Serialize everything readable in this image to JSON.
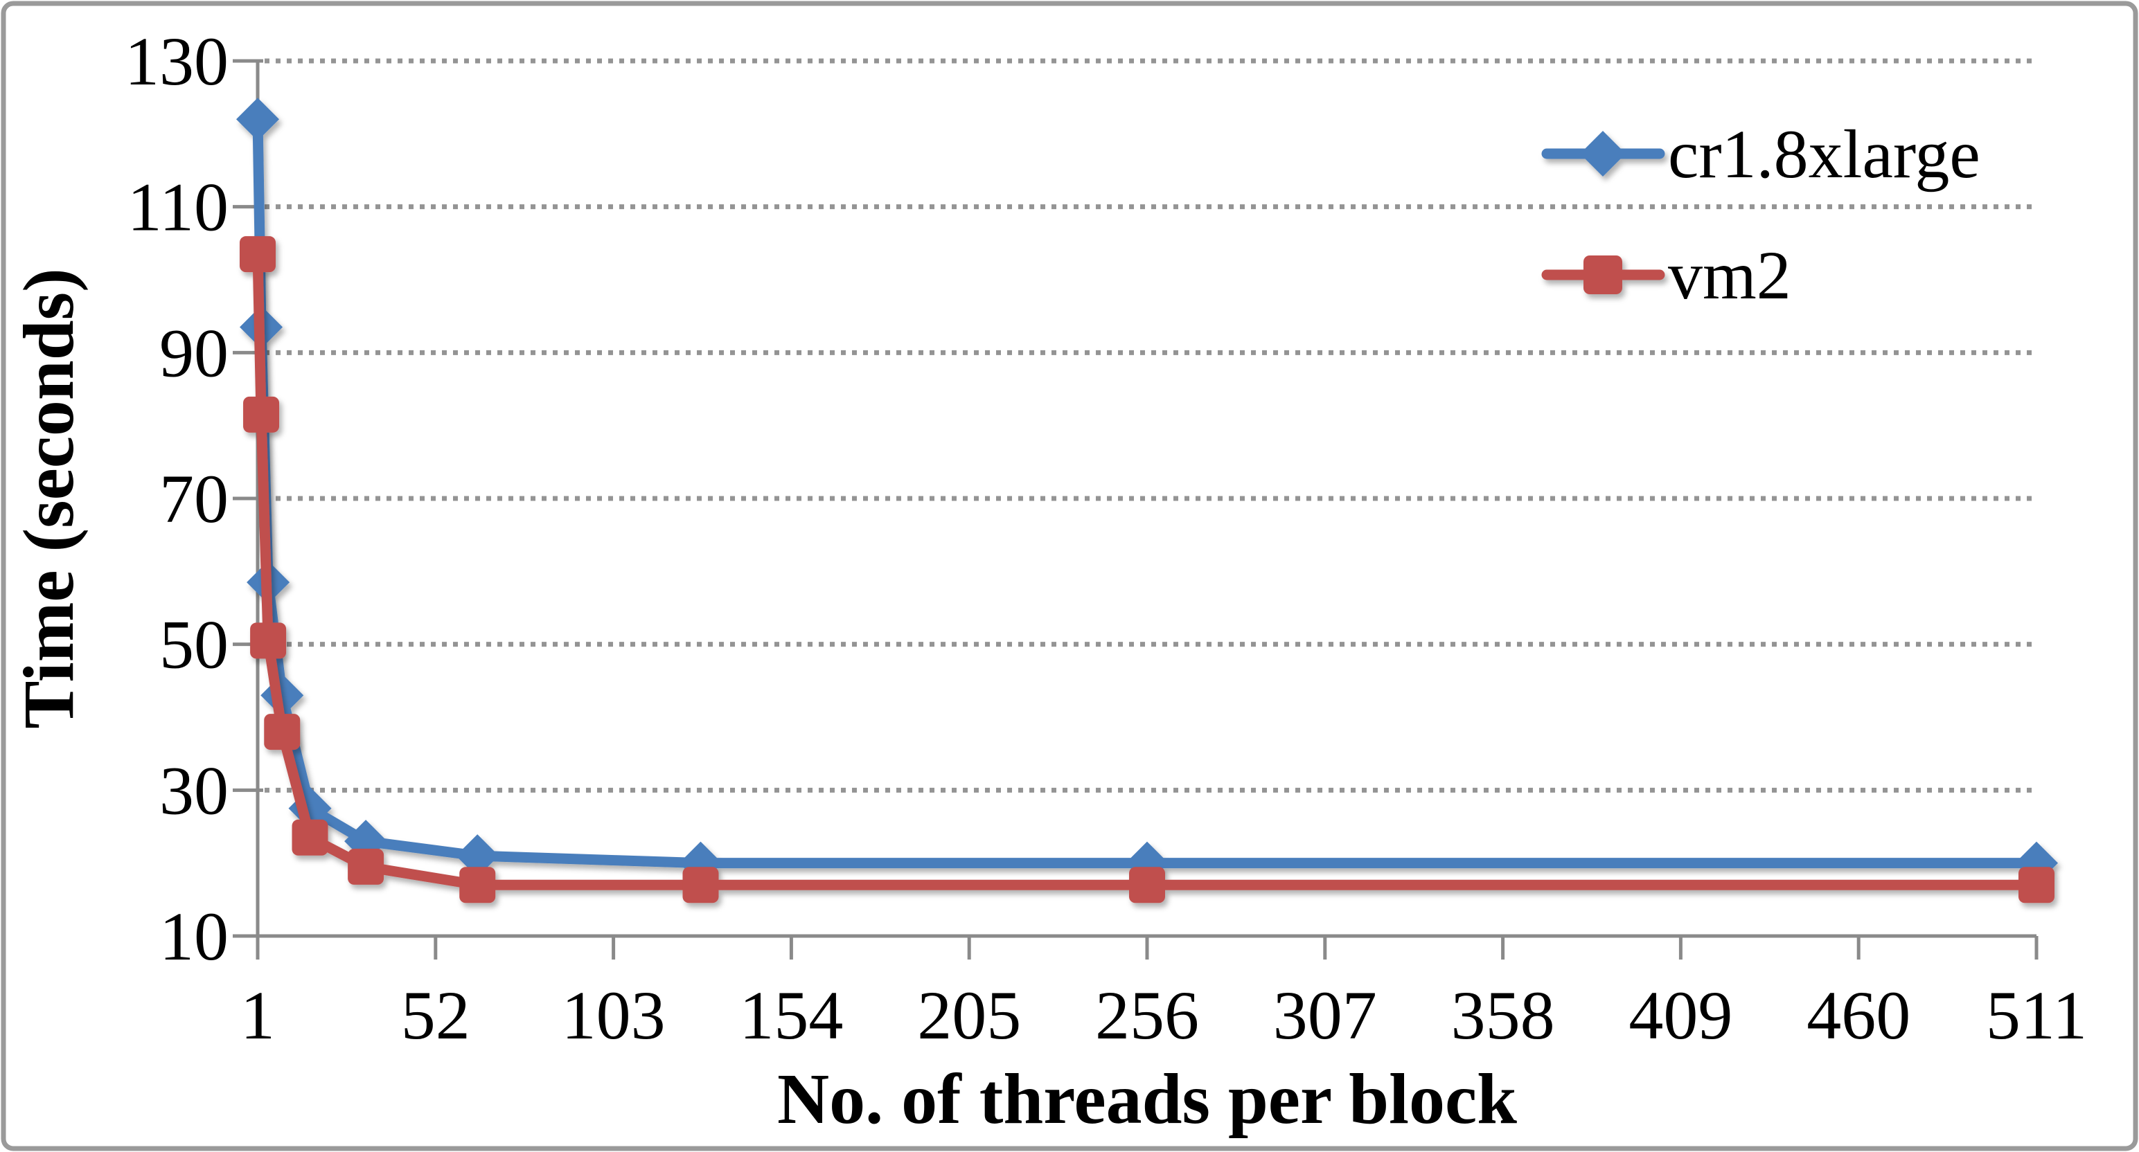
{
  "chart_data": {
    "type": "line",
    "title": "",
    "xlabel": "No. of threads per block",
    "ylabel": "Time (seconds)",
    "x": [
      1,
      2,
      4,
      8,
      16,
      32,
      64,
      128,
      256,
      511
    ],
    "series": [
      {
        "name": "cr1.8xlarge",
        "color": "#4A7EBC",
        "marker": "diamond",
        "values": [
          122,
          93.5,
          58.5,
          43,
          27.5,
          23,
          21,
          20,
          20,
          20
        ]
      },
      {
        "name": "vm2",
        "color": "#C0504D",
        "marker": "square",
        "values": [
          103.5,
          81.5,
          50.5,
          38,
          23.5,
          19.5,
          17,
          17,
          17,
          17
        ]
      }
    ],
    "x_ticks": [
      "1",
      "52",
      "103",
      "154",
      "205",
      "256",
      "307",
      "358",
      "409",
      "460",
      "511"
    ],
    "y_ticks": [
      "10",
      "30",
      "50",
      "70",
      "90",
      "110",
      "130"
    ],
    "xlim": [
      1,
      511
    ],
    "ylim": [
      10,
      130
    ],
    "grid": "horizontal-dotted",
    "legend_position": "upper-right-inside"
  },
  "styles": {
    "axis_color": "#8A8A8A",
    "grid_color": "#949494",
    "border_color": "#9A9A9A",
    "text_color": "#000000",
    "background": "#FFFFFF"
  }
}
